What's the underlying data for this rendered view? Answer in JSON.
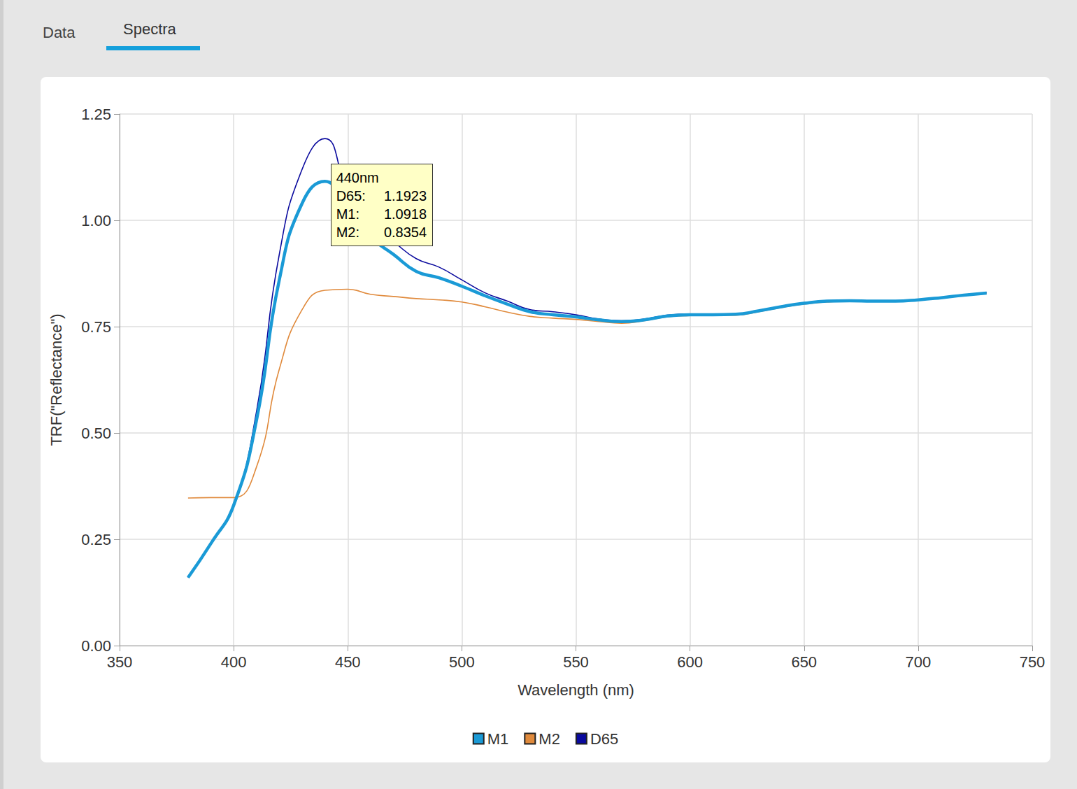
{
  "tabs": [
    {
      "label": "Data",
      "active": false
    },
    {
      "label": "Spectra",
      "active": true
    }
  ],
  "chart_data": {
    "type": "line",
    "xlabel": "Wavelength (nm)",
    "ylabel": "TRF(\"Reflectance\")",
    "x": [
      380,
      390,
      400,
      410,
      420,
      430,
      440,
      450,
      460,
      470,
      480,
      490,
      500,
      510,
      520,
      530,
      540,
      550,
      560,
      570,
      580,
      590,
      600,
      610,
      620,
      630,
      640,
      650,
      660,
      670,
      680,
      690,
      700,
      710,
      720,
      730
    ],
    "series": [
      {
        "name": "M1",
        "color": "#1a9ad6",
        "line_style": "solid",
        "marker": "none",
        "values": [
          0.16,
          0.24,
          0.33,
          0.53,
          0.86,
          1.04,
          1.0918,
          1.02,
          0.96,
          0.92,
          0.88,
          0.865,
          0.845,
          0.823,
          0.803,
          0.785,
          0.778,
          0.773,
          0.766,
          0.762,
          0.766,
          0.775,
          0.778,
          0.778,
          0.779,
          0.787,
          0.797,
          0.805,
          0.81,
          0.811,
          0.81,
          0.81,
          0.813,
          0.818,
          0.824,
          0.829
        ]
      },
      {
        "name": "M2",
        "color": "#e08a3c",
        "line_style": "solid",
        "marker": "none",
        "values": [
          0.347,
          0.348,
          0.348,
          0.42,
          0.65,
          0.79,
          0.8354,
          0.838,
          0.826,
          0.821,
          0.816,
          0.813,
          0.808,
          0.797,
          0.784,
          0.774,
          0.77,
          0.767,
          0.762,
          0.758,
          0.764,
          0.773,
          0.776,
          0.777,
          0.777,
          0.785,
          0.795,
          0.803,
          0.808,
          0.81,
          0.809,
          0.809,
          0.812,
          0.817,
          0.823,
          0.828
        ]
      },
      {
        "name": "D65",
        "color": "#0a0a9e",
        "line_style": "solid",
        "marker": "none",
        "values": [
          0.16,
          0.24,
          0.33,
          0.55,
          0.92,
          1.12,
          1.1923,
          1.07,
          0.99,
          0.95,
          0.91,
          0.89,
          0.86,
          0.83,
          0.81,
          0.79,
          0.785,
          0.778,
          0.768,
          0.764,
          0.768,
          0.777,
          0.78,
          0.779,
          0.78,
          0.788,
          0.798,
          0.806,
          0.811,
          0.812,
          0.811,
          0.811,
          0.814,
          0.819,
          0.825,
          0.83
        ]
      }
    ],
    "xlim": [
      350,
      750
    ],
    "xticks": [
      350,
      400,
      450,
      500,
      550,
      600,
      650,
      700,
      750
    ],
    "ylim": [
      0,
      1.25
    ],
    "yticks": [
      {
        "value": 0,
        "label": "0.00"
      },
      {
        "value": 0.25,
        "label": "0.25"
      },
      {
        "value": 0.5,
        "label": "0.50"
      },
      {
        "value": 0.75,
        "label": "0.75"
      },
      {
        "value": 1,
        "label": "1.00"
      },
      {
        "value": 1.25,
        "label": "1.25"
      }
    ],
    "grid": true,
    "legend": "bottom",
    "annotations": [
      {
        "x": 440,
        "label": "440nm",
        "rows": [
          {
            "label": "D65:",
            "value": 1.1923
          },
          {
            "label": "M1:",
            "value": 1.0918
          },
          {
            "label": "M2:",
            "value": 0.8354
          }
        ]
      }
    ]
  }
}
